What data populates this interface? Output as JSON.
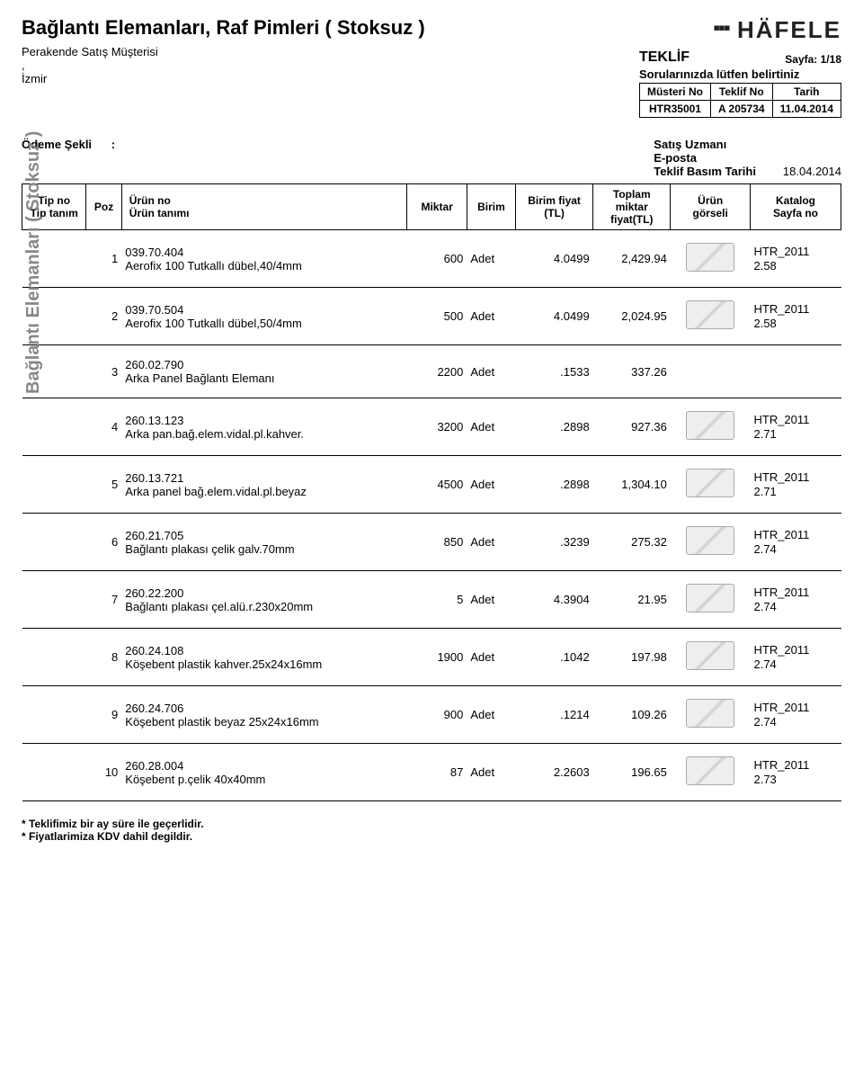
{
  "header": {
    "title": "Bağlantı Elemanları, Raf Pimleri ( Stoksuz )",
    "customer_line": "Perakende Satış Müşterisi",
    "comma": ",",
    "city": "İzmir",
    "brand": "HÄFELE",
    "teklif_label": "TEKLİF",
    "page_label": "Sayfa: 1/18",
    "questions": "Sorularınızda lütfen belirtiniz",
    "info_headers": {
      "c1": "Müsteri No",
      "c2": "Teklif No",
      "c3": "Tarih"
    },
    "info_values": {
      "c1": "HTR35001",
      "c2": "A 205734",
      "c3": "11.04.2014"
    }
  },
  "odeme": {
    "left_label": "Ödeme Şekli",
    "colon": ":",
    "r1_label": "Satış Uzmanı",
    "r2_label": "E-posta",
    "r3_label": "Teklif Basım Tarihi",
    "r3_value": "18.04.2014"
  },
  "columns": {
    "tip1": "Tip no",
    "tip2": "Tip tanım",
    "poz": "Poz",
    "prod1": "Ürün no",
    "prod2": "Ürün tanımı",
    "miktar": "Miktar",
    "birim": "Birim",
    "bf1": "Birim fiyat",
    "bf2": "(TL)",
    "tot1": "Toplam",
    "tot2": "miktar",
    "tot3": "fiyat(TL)",
    "img1": "Ürün",
    "img2": "görseli",
    "cat1": "Katalog",
    "cat2": "Sayfa no"
  },
  "side_label": "Bağlantı Elemanları ( Stoksuz )",
  "rows": [
    {
      "poz": "1",
      "code": "039.70.404",
      "name": "Aerofix 100 Tutkallı dübel,40/4mm",
      "qty": "600",
      "unit": "Adet",
      "price": "4.0499",
      "total": "2,429.94",
      "has_img": true,
      "cat1": "HTR_2011",
      "cat2": "2.58"
    },
    {
      "poz": "2",
      "code": "039.70.504",
      "name": "Aerofix 100 Tutkallı dübel,50/4mm",
      "qty": "500",
      "unit": "Adet",
      "price": "4.0499",
      "total": "2,024.95",
      "has_img": true,
      "cat1": "HTR_2011",
      "cat2": "2.58"
    },
    {
      "poz": "3",
      "code": "260.02.790",
      "name": "Arka Panel Bağlantı Elemanı",
      "qty": "2200",
      "unit": "Adet",
      "price": ".1533",
      "total": "337.26",
      "has_img": false,
      "cat1": "",
      "cat2": ""
    },
    {
      "poz": "4",
      "code": "260.13.123",
      "name": "Arka pan.bağ.elem.vidal.pl.kahver.",
      "qty": "3200",
      "unit": "Adet",
      "price": ".2898",
      "total": "927.36",
      "has_img": true,
      "cat1": "HTR_2011",
      "cat2": "2.71"
    },
    {
      "poz": "5",
      "code": "260.13.721",
      "name": "Arka panel bağ.elem.vidal.pl.beyaz",
      "qty": "4500",
      "unit": "Adet",
      "price": ".2898",
      "total": "1,304.10",
      "has_img": true,
      "cat1": "HTR_2011",
      "cat2": "2.71"
    },
    {
      "poz": "6",
      "code": "260.21.705",
      "name": "Bağlantı plakası çelik galv.70mm",
      "qty": "850",
      "unit": "Adet",
      "price": ".3239",
      "total": "275.32",
      "has_img": true,
      "cat1": "HTR_2011",
      "cat2": "2.74"
    },
    {
      "poz": "7",
      "code": "260.22.200",
      "name": "Bağlantı plakası çel.alü.r.230x20mm",
      "qty": "5",
      "unit": "Adet",
      "price": "4.3904",
      "total": "21.95",
      "has_img": true,
      "cat1": "HTR_2011",
      "cat2": "2.74"
    },
    {
      "poz": "8",
      "code": "260.24.108",
      "name": "Köşebent plastik kahver.25x24x16mm",
      "qty": "1900",
      "unit": "Adet",
      "price": ".1042",
      "total": "197.98",
      "has_img": true,
      "cat1": "HTR_2011",
      "cat2": "2.74"
    },
    {
      "poz": "9",
      "code": "260.24.706",
      "name": "Köşebent plastik beyaz 25x24x16mm",
      "qty": "900",
      "unit": "Adet",
      "price": ".1214",
      "total": "109.26",
      "has_img": true,
      "cat1": "HTR_2011",
      "cat2": "2.74"
    },
    {
      "poz": "10",
      "code": "260.28.004",
      "name": "Köşebent p.çelik 40x40mm",
      "qty": "87",
      "unit": "Adet",
      "price": "2.2603",
      "total": "196.65",
      "has_img": true,
      "cat1": "HTR_2011",
      "cat2": "2.73"
    }
  ],
  "footer": {
    "l1": "* Teklifimiz bir ay süre ile geçerlidir.",
    "l2": "* Fiyatlarimiza KDV dahil degildir."
  }
}
